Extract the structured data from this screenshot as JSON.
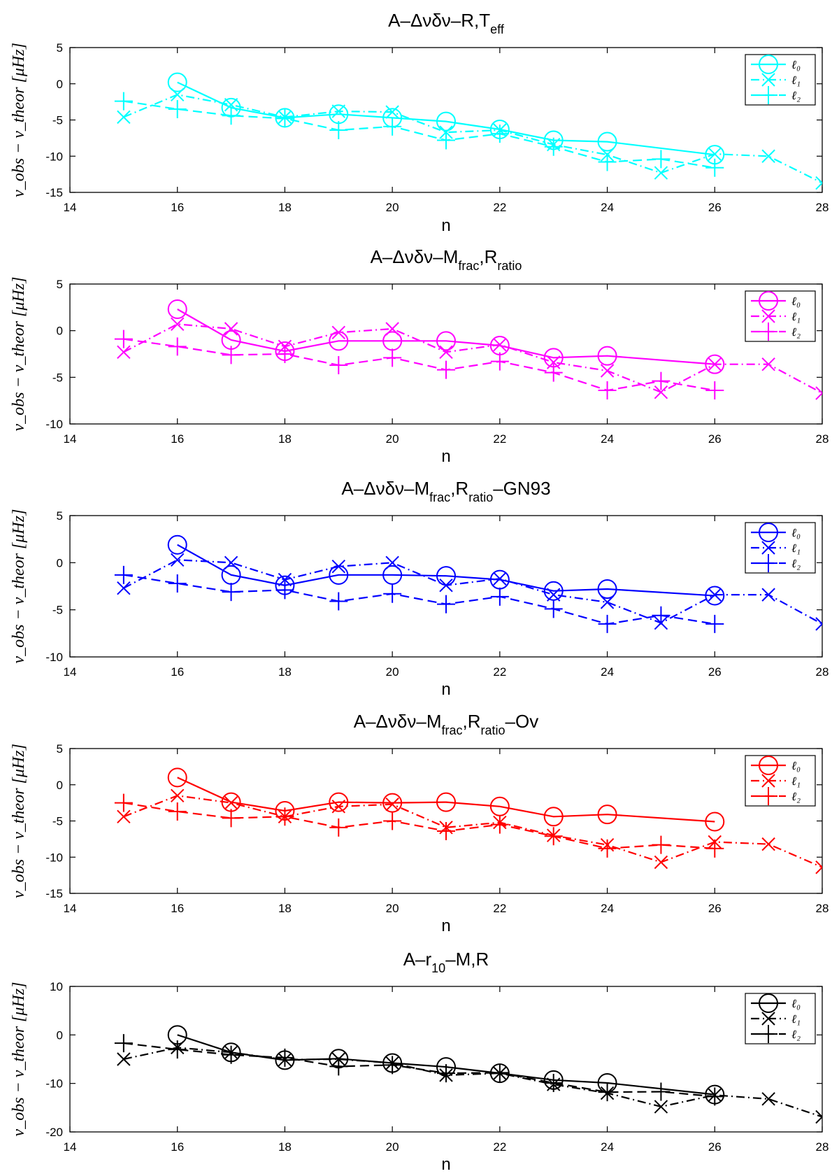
{
  "chart_data": [
    {
      "type": "line",
      "title": "A–Δνδν–R,T",
      "title_sub": "eff",
      "title_plain": "A–Δνδν–R,Teff",
      "color": "#00ffff",
      "xlabel": "n",
      "ylabel": "ν_obs − ν_theor [μHz]",
      "xlim": [
        14,
        28
      ],
      "ylim": [
        -15,
        5
      ],
      "xticks": [
        14,
        16,
        18,
        20,
        22,
        24,
        26,
        28
      ],
      "yticks": [
        -15,
        -10,
        -5,
        0,
        5
      ],
      "legend_position": "top-right",
      "series": [
        {
          "name": "ℓ₀",
          "line": "solid",
          "marker": "circle",
          "x": [
            16,
            17,
            18,
            19,
            20,
            21,
            22,
            23,
            24,
            26
          ],
          "y": [
            0.2,
            -3.3,
            -4.7,
            -4.2,
            -4.7,
            -5.2,
            -6.3,
            -7.8,
            -8.0,
            -9.8
          ]
        },
        {
          "name": "ℓ₁",
          "line": "dashdot",
          "marker": "x",
          "x": [
            15,
            16,
            17,
            18,
            19,
            20,
            21,
            22,
            23,
            24,
            25,
            26,
            27,
            28
          ],
          "y": [
            -4.6,
            -1.5,
            -2.9,
            -4.6,
            -3.8,
            -3.9,
            -6.7,
            -6.4,
            -8.4,
            -9.8,
            -12.3,
            -9.7,
            -10.0,
            -13.7
          ]
        },
        {
          "name": "ℓ₂",
          "line": "dashed",
          "marker": "plus",
          "x": [
            15,
            16,
            17,
            18,
            19,
            20,
            21,
            22,
            23,
            24,
            25,
            26
          ],
          "y": [
            -2.4,
            -3.5,
            -4.4,
            -4.8,
            -6.4,
            -5.9,
            -7.8,
            -6.9,
            -8.7,
            -10.8,
            -10.4,
            -11.6
          ]
        }
      ]
    },
    {
      "type": "line",
      "title": "A–Δνδν–M",
      "title_sub": "frac",
      "title_mid": ",R",
      "title_sub2": "ratio",
      "title_plain": "A–Δνδν–Mfrac,Rratio",
      "color": "#ff00ff",
      "xlabel": "n",
      "ylabel": "ν_obs − ν_theor [μHz]",
      "xlim": [
        14,
        28
      ],
      "ylim": [
        -10,
        5
      ],
      "xticks": [
        14,
        16,
        18,
        20,
        22,
        24,
        26,
        28
      ],
      "yticks": [
        -10,
        -5,
        0,
        5
      ],
      "legend_position": "top-right",
      "series": [
        {
          "name": "ℓ₀",
          "line": "solid",
          "marker": "circle",
          "x": [
            16,
            17,
            18,
            19,
            20,
            21,
            22,
            23,
            24,
            26
          ],
          "y": [
            2.3,
            -1.0,
            -2.2,
            -1.1,
            -1.1,
            -1.1,
            -1.6,
            -2.9,
            -2.7,
            -3.6
          ]
        },
        {
          "name": "ℓ₁",
          "line": "dashdot",
          "marker": "x",
          "x": [
            15,
            16,
            17,
            18,
            19,
            20,
            21,
            22,
            23,
            24,
            25,
            26,
            27,
            28
          ],
          "y": [
            -2.3,
            0.7,
            0.2,
            -1.7,
            -0.2,
            0.2,
            -2.3,
            -1.5,
            -3.4,
            -4.3,
            -6.6,
            -3.6,
            -3.6,
            -6.7
          ]
        },
        {
          "name": "ℓ₂",
          "line": "dashed",
          "marker": "plus",
          "x": [
            15,
            16,
            17,
            18,
            19,
            20,
            21,
            22,
            23,
            24,
            25,
            26
          ],
          "y": [
            -0.9,
            -1.7,
            -2.6,
            -2.5,
            -3.7,
            -2.9,
            -4.2,
            -3.3,
            -4.5,
            -6.4,
            -5.4,
            -6.4
          ]
        }
      ]
    },
    {
      "type": "line",
      "title": "A–Δνδν–M",
      "title_sub": "frac",
      "title_mid": ",R",
      "title_sub2": "ratio",
      "title_tail": "–GN93",
      "title_plain": "A–Δνδν–Mfrac,Rratio–GN93",
      "color": "#0000ff",
      "xlabel": "n",
      "ylabel": "ν_obs − ν_theor [μHz]",
      "xlim": [
        14,
        28
      ],
      "ylim": [
        -10,
        5
      ],
      "xticks": [
        14,
        16,
        18,
        20,
        22,
        24,
        26,
        28
      ],
      "yticks": [
        -10,
        -5,
        0,
        5
      ],
      "legend_position": "top-right",
      "series": [
        {
          "name": "ℓ₀",
          "line": "solid",
          "marker": "circle",
          "x": [
            16,
            17,
            18,
            19,
            20,
            21,
            22,
            23,
            24,
            26
          ],
          "y": [
            1.9,
            -1.3,
            -2.4,
            -1.3,
            -1.3,
            -1.4,
            -1.8,
            -3.0,
            -2.8,
            -3.5
          ]
        },
        {
          "name": "ℓ₁",
          "line": "dashdot",
          "marker": "x",
          "x": [
            15,
            16,
            17,
            18,
            19,
            20,
            21,
            22,
            23,
            24,
            25,
            26,
            27,
            28
          ],
          "y": [
            -2.7,
            0.3,
            0.0,
            -1.8,
            -0.4,
            0.0,
            -2.4,
            -1.7,
            -3.4,
            -4.2,
            -6.4,
            -3.4,
            -3.4,
            -6.5
          ]
        },
        {
          "name": "ℓ₂",
          "line": "dashed",
          "marker": "plus",
          "x": [
            15,
            16,
            17,
            18,
            19,
            20,
            21,
            22,
            23,
            24,
            25,
            26
          ],
          "y": [
            -1.3,
            -2.2,
            -3.1,
            -2.9,
            -4.1,
            -3.3,
            -4.4,
            -3.6,
            -4.9,
            -6.5,
            -5.6,
            -6.5
          ]
        }
      ]
    },
    {
      "type": "line",
      "title": "A–Δνδν–M",
      "title_sub": "frac",
      "title_mid": ",R",
      "title_sub2": "ratio",
      "title_tail": "–Ov",
      "title_plain": "A–Δνδν–Mfrac,Rratio–Ov",
      "color": "#ff0000",
      "xlabel": "n",
      "ylabel": "ν_obs − ν_theor [μHz]",
      "xlim": [
        14,
        28
      ],
      "ylim": [
        -15,
        5
      ],
      "xticks": [
        14,
        16,
        18,
        20,
        22,
        24,
        26,
        28
      ],
      "yticks": [
        -15,
        -10,
        -5,
        0,
        5
      ],
      "legend_position": "top-right",
      "series": [
        {
          "name": "ℓ₀",
          "line": "solid",
          "marker": "circle",
          "x": [
            16,
            17,
            18,
            19,
            20,
            21,
            22,
            23,
            24,
            26
          ],
          "y": [
            1.0,
            -2.4,
            -3.6,
            -2.4,
            -2.5,
            -2.4,
            -3.0,
            -4.4,
            -4.1,
            -5.1
          ]
        },
        {
          "name": "ℓ₁",
          "line": "dashdot",
          "marker": "x",
          "x": [
            15,
            16,
            17,
            18,
            19,
            20,
            21,
            22,
            23,
            24,
            25,
            26,
            27,
            28
          ],
          "y": [
            -4.4,
            -1.5,
            -2.5,
            -4.4,
            -3.0,
            -2.7,
            -5.9,
            -5.2,
            -7.0,
            -8.3,
            -10.7,
            -7.9,
            -8.2,
            -11.4
          ]
        },
        {
          "name": "ℓ₂",
          "line": "dashed",
          "marker": "plus",
          "x": [
            15,
            16,
            17,
            18,
            19,
            20,
            21,
            22,
            23,
            24,
            25,
            26
          ],
          "y": [
            -2.5,
            -3.7,
            -4.6,
            -4.4,
            -5.9,
            -5.0,
            -6.4,
            -5.5,
            -7.1,
            -8.8,
            -8.3,
            -8.8
          ]
        }
      ]
    },
    {
      "type": "line",
      "title": "A–r",
      "title_sub": "10",
      "title_mid": "–M,R",
      "title_plain": "A–r10–M,R",
      "color": "#000000",
      "xlabel": "n",
      "ylabel": "ν_obs − ν_theor [μHz]",
      "xlim": [
        14,
        28
      ],
      "ylim": [
        -20,
        10
      ],
      "xticks": [
        14,
        16,
        18,
        20,
        22,
        24,
        26,
        28
      ],
      "yticks": [
        -20,
        -10,
        0,
        10
      ],
      "legend_position": "top-right",
      "series": [
        {
          "name": "ℓ₀",
          "line": "solid",
          "marker": "circle",
          "x": [
            16,
            17,
            18,
            19,
            20,
            21,
            22,
            23,
            24,
            26
          ],
          "y": [
            0.0,
            -3.6,
            -5.2,
            -4.9,
            -5.8,
            -6.6,
            -7.9,
            -9.3,
            -9.9,
            -12.3
          ]
        },
        {
          "name": "ℓ₁",
          "line": "dashdot",
          "marker": "x",
          "x": [
            15,
            16,
            17,
            18,
            19,
            20,
            21,
            22,
            23,
            24,
            25,
            26,
            27,
            28
          ],
          "y": [
            -5.0,
            -2.6,
            -3.6,
            -5.1,
            -5.0,
            -5.8,
            -8.3,
            -7.9,
            -10.2,
            -12.0,
            -14.8,
            -12.4,
            -13.2,
            -16.9
          ]
        },
        {
          "name": "ℓ₂",
          "line": "dashed",
          "marker": "plus",
          "x": [
            15,
            16,
            17,
            18,
            19,
            20,
            21,
            22,
            23,
            24,
            25,
            26
          ],
          "y": [
            -1.7,
            -3.0,
            -4.1,
            -4.7,
            -6.5,
            -6.2,
            -7.9,
            -7.8,
            -9.9,
            -11.8,
            -11.7,
            -12.7
          ]
        }
      ]
    }
  ]
}
